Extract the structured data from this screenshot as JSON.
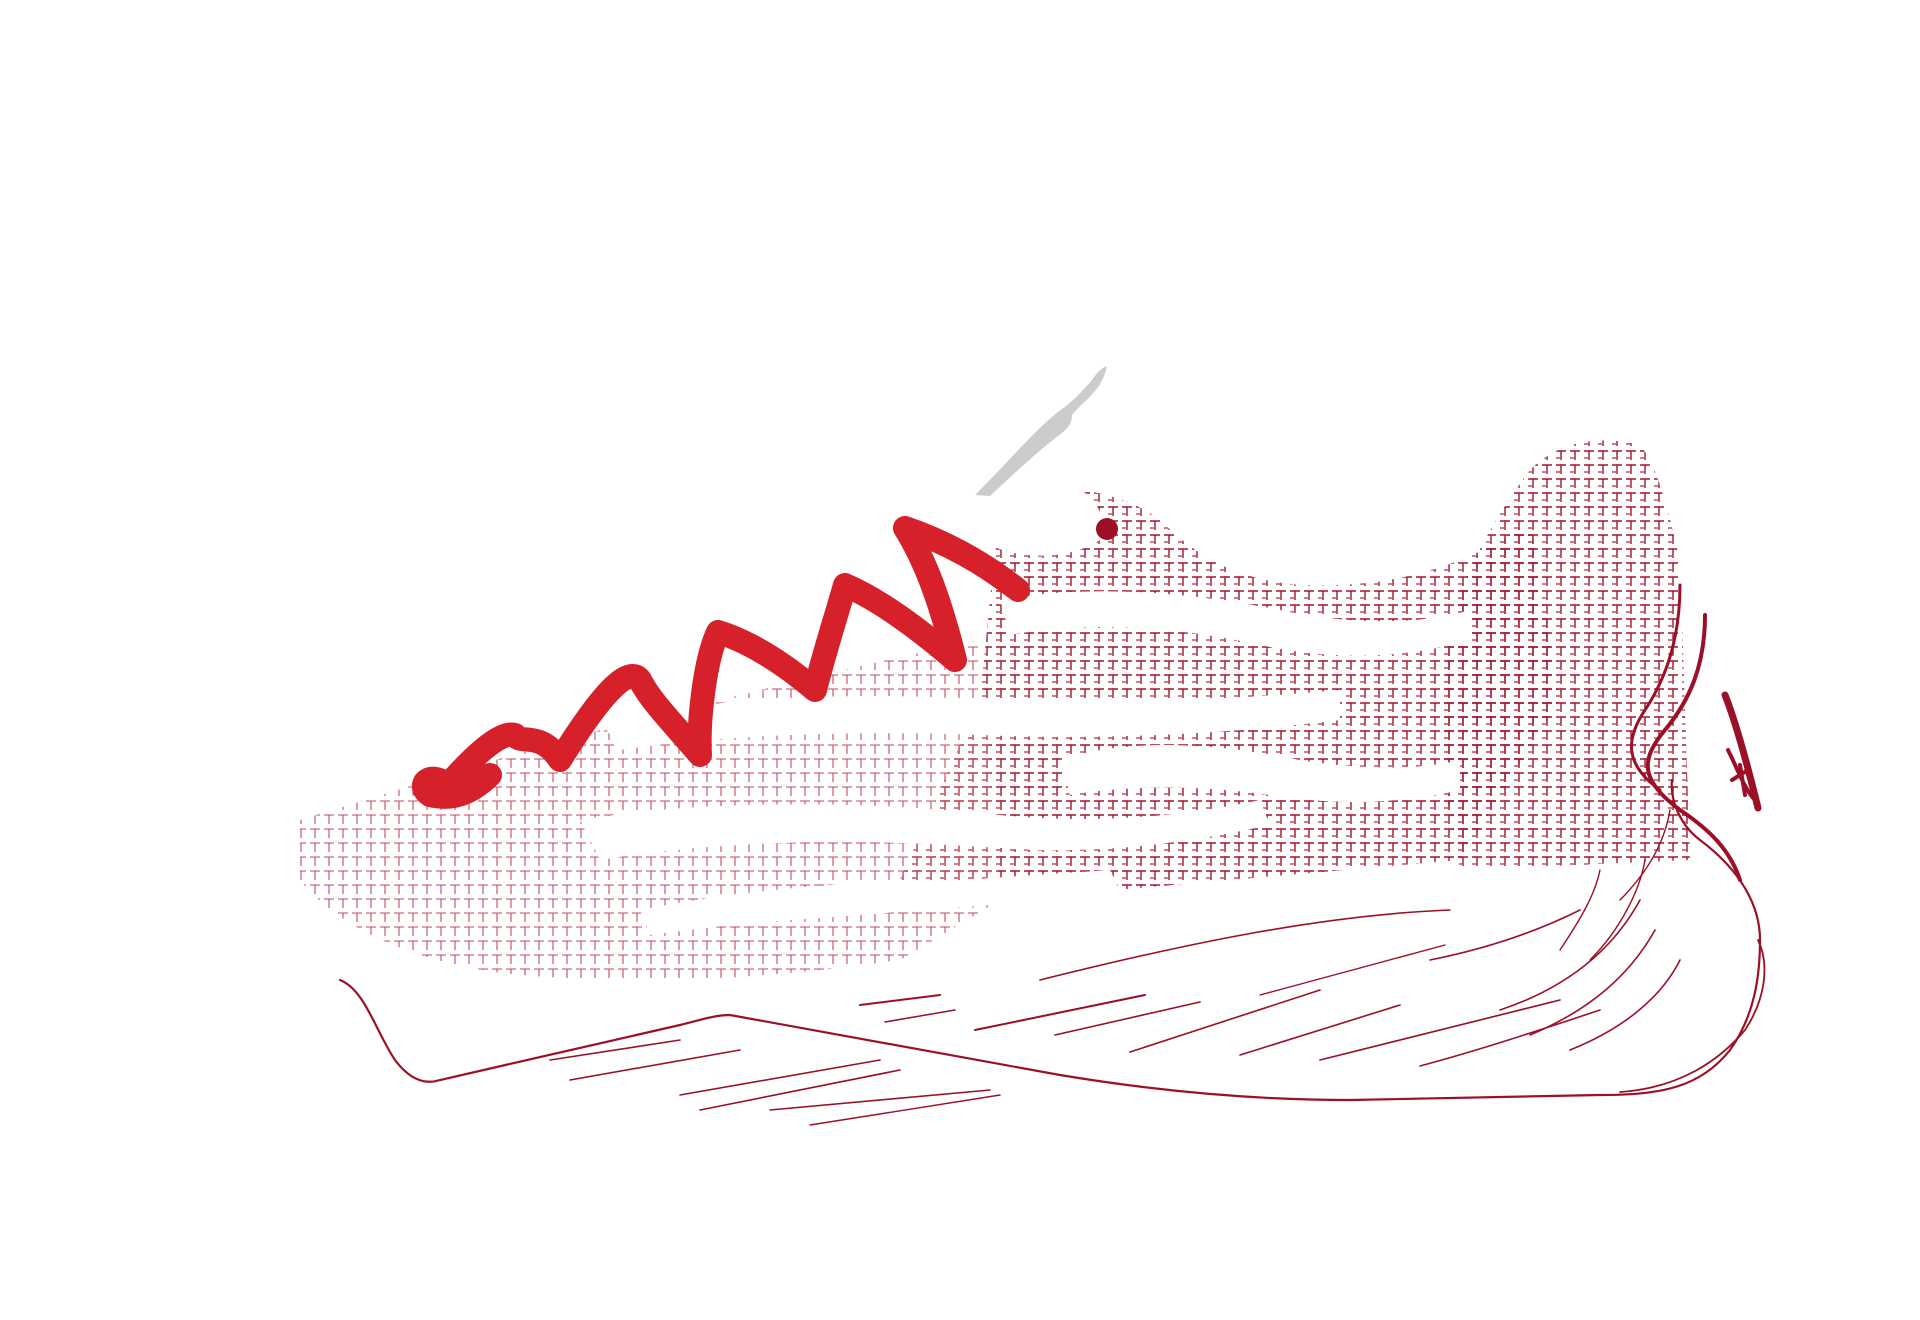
{
  "artwork": {
    "subject": "sneaker-illustration",
    "palette": {
      "background": "#ffffff",
      "lace": "#d6202a",
      "ink": "#9b1027",
      "pattern": "#a3122c",
      "tongue_tip": "#cccccc"
    }
  }
}
